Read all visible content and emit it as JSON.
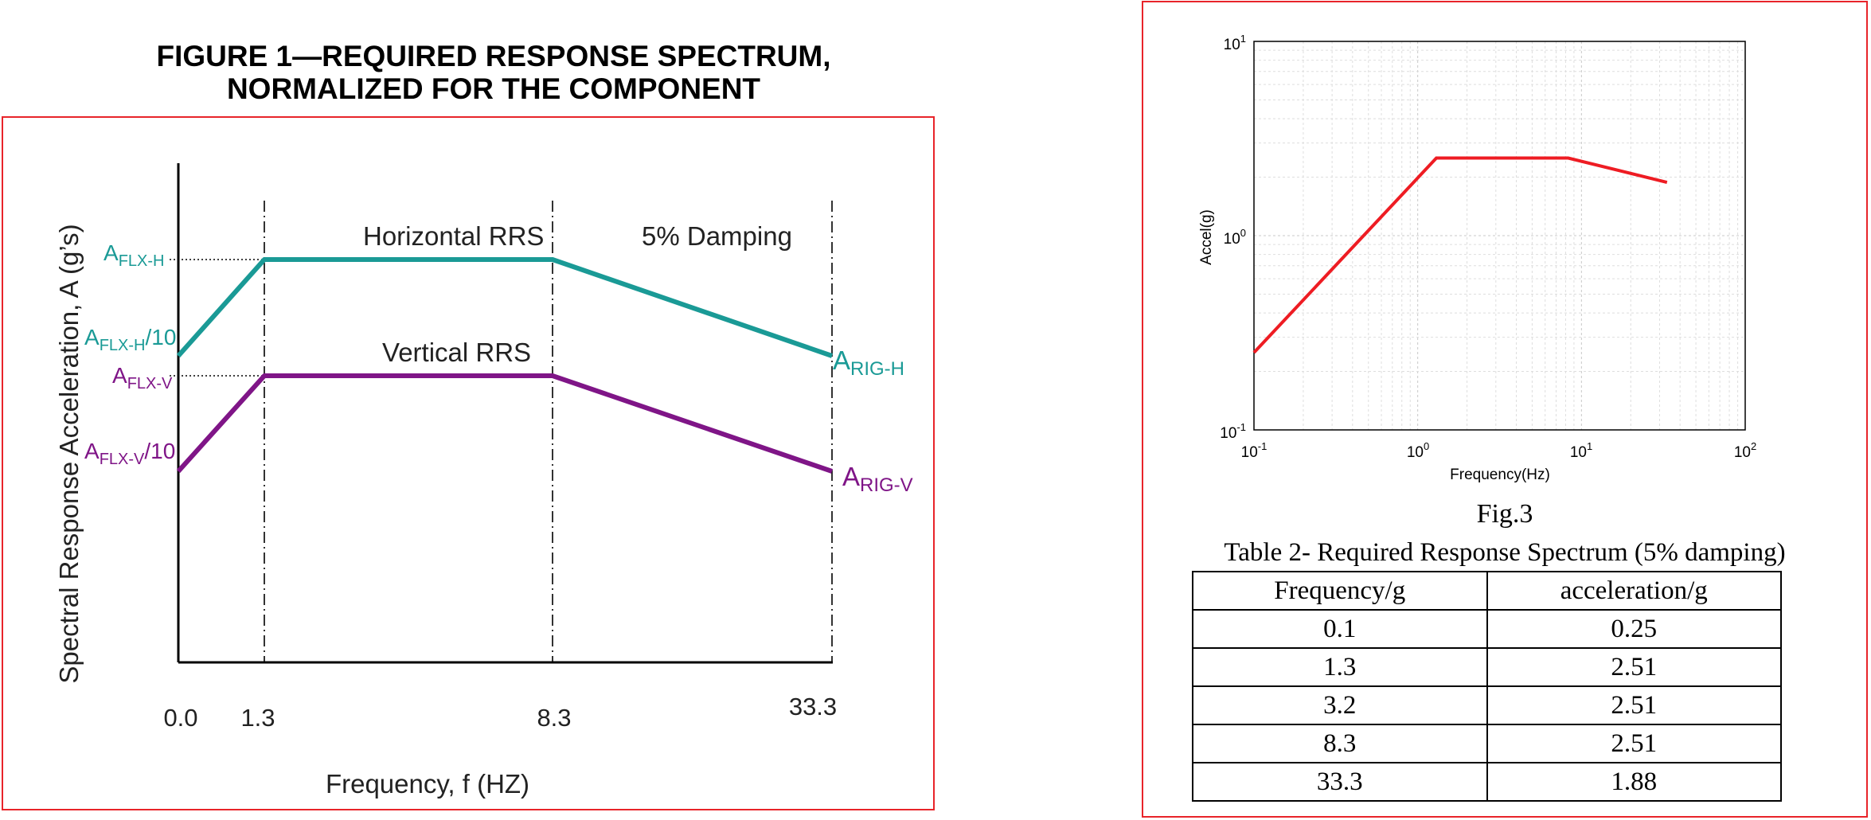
{
  "figure1": {
    "title_line1": "FIGURE 1—REQUIRED RESPONSE SPECTRUM,",
    "title_line2": "NORMALIZED FOR THE COMPONENT",
    "ylabel": "Spectral Response Acceleration, A (g’s)",
    "xlabel": "Frequency, f (HZ)",
    "ticks": [
      "0.0",
      "1.3",
      "8.3",
      "33.3"
    ],
    "horizontal_label": "Horizontal RRS",
    "vertical_label": "Vertical RRS",
    "damping_label": "5% Damping",
    "y_labels": {
      "flx_h": {
        "base": "A",
        "sub": "FLX-H",
        "suffix": ""
      },
      "flx_h_10": {
        "base": "A",
        "sub": "FLX-H",
        "suffix": "/10"
      },
      "flx_v": {
        "base": "A",
        "sub": "FLX-V",
        "suffix": ""
      },
      "flx_v_10": {
        "base": "A",
        "sub": "FLX-V",
        "suffix": "/10"
      },
      "rig_h": {
        "base": "A",
        "sub": "RIG-H",
        "suffix": ""
      },
      "rig_v": {
        "base": "A",
        "sub": "RIG-V",
        "suffix": ""
      }
    },
    "colors": {
      "horizontal": "#1a9a96",
      "vertical": "#7f1587"
    }
  },
  "fig3": {
    "caption": "Fig.3",
    "xlabel": "Frequency(Hz)",
    "ylabel": "Accel(g)",
    "x_ticks": [
      {
        "base": "10",
        "exp": "-1"
      },
      {
        "base": "10",
        "exp": "0"
      },
      {
        "base": "10",
        "exp": "1"
      },
      {
        "base": "10",
        "exp": "2"
      }
    ],
    "y_ticks": [
      {
        "base": "10",
        "exp": "-1"
      },
      {
        "base": "10",
        "exp": "0"
      },
      {
        "base": "10",
        "exp": "1"
      }
    ],
    "line_color": "#ee1c23"
  },
  "chart_data": [
    {
      "type": "line",
      "title": "FIGURE 1—REQUIRED RESPONSE SPECTRUM, NORMALIZED FOR THE COMPONENT",
      "xlabel": "Frequency, f (HZ)",
      "ylabel": "Spectral Response Acceleration, A (g’s)",
      "x": [
        0.0,
        1.3,
        8.3,
        33.3
      ],
      "series": [
        {
          "name": "Horizontal RRS",
          "values": [
            "A_FLX-H/10",
            "A_FLX-H",
            "A_FLX-H",
            "A_RIG-H"
          ]
        },
        {
          "name": "Vertical RRS",
          "values": [
            "A_FLX-V/10",
            "A_FLX-V",
            "A_FLX-V",
            "A_RIG-V"
          ]
        }
      ],
      "annotations": [
        "5% Damping"
      ]
    },
    {
      "type": "line",
      "title": "Fig.3",
      "xlabel": "Frequency(Hz)",
      "ylabel": "Accel(g)",
      "xscale": "log",
      "yscale": "log",
      "xlim": [
        0.1,
        100
      ],
      "ylim": [
        0.1,
        10
      ],
      "grid": true,
      "series": [
        {
          "x": [
            0.1,
            1.3,
            3.2,
            8.3,
            33.3
          ],
          "values": [
            0.25,
            2.51,
            2.51,
            2.51,
            1.88
          ]
        }
      ]
    }
  ],
  "table": {
    "title": "Table 2- Required Response Spectrum (5% damping)",
    "headers": [
      "Frequency/g",
      "acceleration/g"
    ],
    "rows": [
      [
        "0.1",
        "0.25"
      ],
      [
        "1.3",
        "2.51"
      ],
      [
        "3.2",
        "2.51"
      ],
      [
        "8.3",
        "2.51"
      ],
      [
        "33.3",
        "1.88"
      ]
    ]
  }
}
